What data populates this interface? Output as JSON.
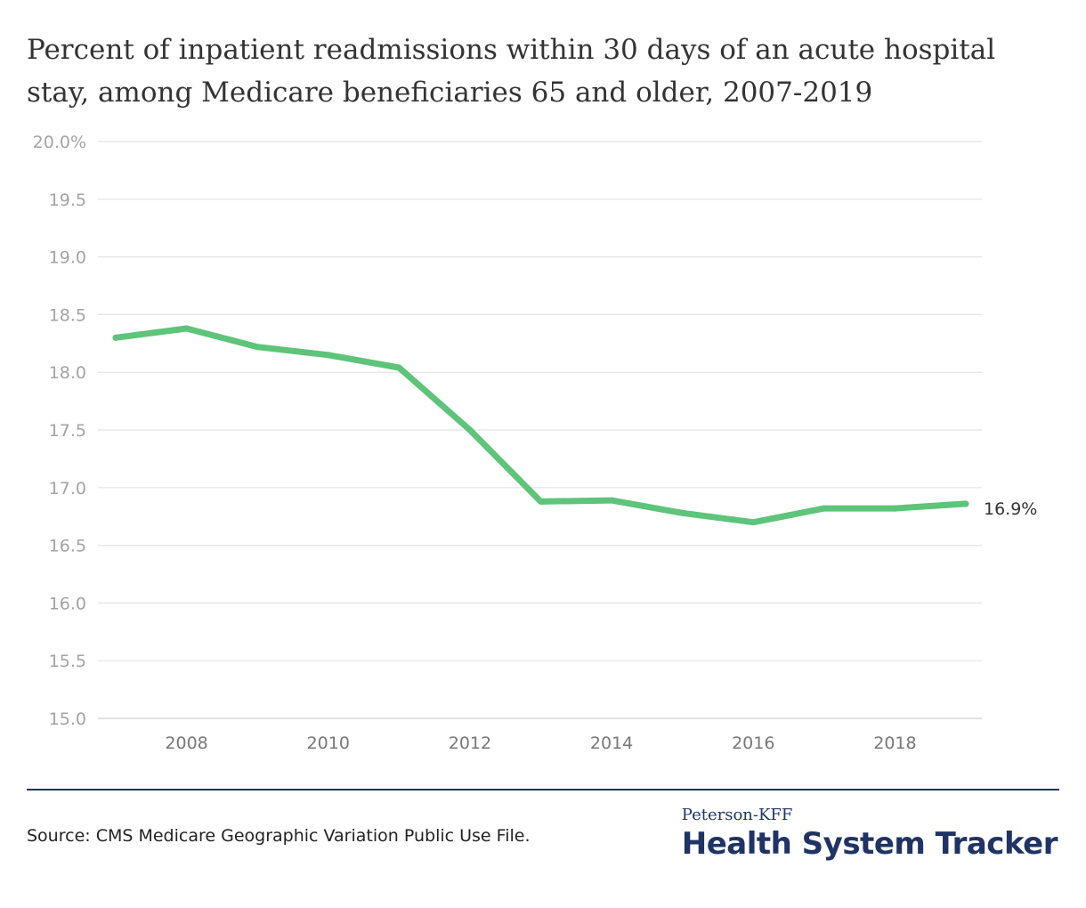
{
  "title": "Percent of inpatient readmissions within 30 days of an acute hospital stay, among Medicare beneficiaries 65 and older, 2007-2019",
  "source": "Source: CMS Medicare Geographic Variation Public Use File.",
  "brand": {
    "top": "Peterson-KFF",
    "main": "Health System Tracker"
  },
  "colors": {
    "line": "#5dc47a",
    "grid": "#e4e4e4",
    "brand": "#1f3364"
  },
  "chart_data": {
    "type": "line",
    "title": "Percent of inpatient readmissions within 30 days of an acute hospital stay, among Medicare beneficiaries 65 and older, 2007-2019",
    "xlabel": "",
    "ylabel": "",
    "x": [
      2007,
      2008,
      2009,
      2010,
      2011,
      2012,
      2013,
      2014,
      2015,
      2016,
      2017,
      2018,
      2019
    ],
    "series": [
      {
        "values": [
          18.3,
          18.38,
          18.22,
          18.15,
          18.04,
          17.5,
          16.88,
          16.89,
          16.78,
          16.7,
          16.82,
          16.82,
          16.86
        ]
      }
    ],
    "ylim": [
      15.0,
      20.0
    ],
    "xlim": [
      2007,
      2019
    ],
    "yticks": [
      {
        "value": 15.0,
        "label": "15.0"
      },
      {
        "value": 15.5,
        "label": "15.5"
      },
      {
        "value": 16.0,
        "label": "16.0"
      },
      {
        "value": 16.5,
        "label": "16.5"
      },
      {
        "value": 17.0,
        "label": "17.0"
      },
      {
        "value": 17.5,
        "label": "17.5"
      },
      {
        "value": 18.0,
        "label": "18.0"
      },
      {
        "value": 18.5,
        "label": "18.5"
      },
      {
        "value": 19.0,
        "label": "19.0"
      },
      {
        "value": 19.5,
        "label": "19.5"
      },
      {
        "value": 20.0,
        "label": "20.0%"
      }
    ],
    "xticks": [
      {
        "value": 2008,
        "label": "2008"
      },
      {
        "value": 2010,
        "label": "2010"
      },
      {
        "value": 2012,
        "label": "2012"
      },
      {
        "value": 2014,
        "label": "2014"
      },
      {
        "value": 2016,
        "label": "2016"
      },
      {
        "value": 2018,
        "label": "2018"
      }
    ],
    "end_label": "16.9%",
    "grid": true,
    "legend": "none"
  }
}
